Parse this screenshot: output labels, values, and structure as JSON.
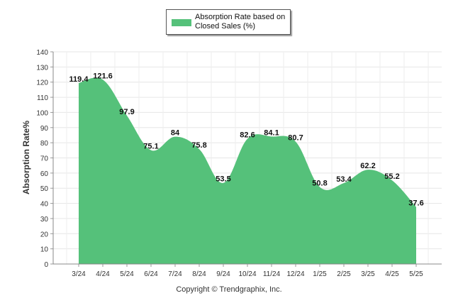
{
  "legend": {
    "label": "Absorption Rate based on Closed Sales (%)",
    "color": "#55c17a"
  },
  "footer": "Copyright © Trendgraphix, Inc.",
  "chart_data": {
    "type": "area",
    "title": "",
    "xlabel": "",
    "ylabel": "Absorption Rate%",
    "ylim": [
      0,
      140
    ],
    "yticks": [
      0,
      10,
      20,
      30,
      40,
      50,
      60,
      70,
      80,
      90,
      100,
      110,
      120,
      130,
      140
    ],
    "grid": true,
    "legend_position": "top-center",
    "categories": [
      "3/24",
      "4/24",
      "5/24",
      "6/24",
      "7/24",
      "8/24",
      "9/24",
      "10/24",
      "11/24",
      "12/24",
      "1/25",
      "2/25",
      "3/25",
      "4/25",
      "5/25"
    ],
    "series": [
      {
        "name": "Absorption Rate based on Closed Sales (%)",
        "color": "#55c17a",
        "values": [
          119.4,
          121.6,
          97.9,
          75.1,
          84,
          75.8,
          53.5,
          82.6,
          84.1,
          80.7,
          50.8,
          53.4,
          62.2,
          55.2,
          37.6
        ]
      }
    ]
  }
}
